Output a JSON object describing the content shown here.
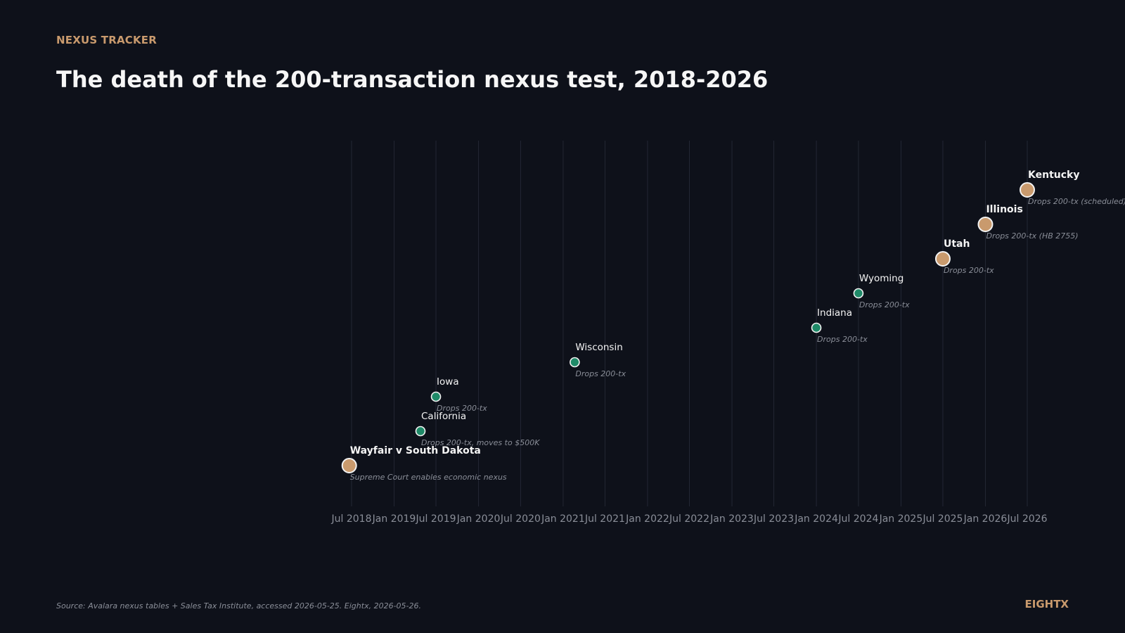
{
  "header": {
    "kicker": "NEXUS TRACKER",
    "title": "The death of the 200-transaction nexus test, 2018-2026"
  },
  "footer": {
    "source": "Source: Avalara nexus tables + Sales Tax Institute, accessed 2026-05-25. Eightx, 2026-05-26.",
    "brand": "EIGHTX"
  },
  "colors": {
    "background": "#0e111a",
    "major": "#c99a6d",
    "minor": "#1f8a68",
    "grid": "#232734",
    "tick_text": "#8a8e98",
    "label": "#f4f4f4",
    "sublabel": "#8a8e98"
  },
  "chart_data": {
    "type": "scatter",
    "title": "The death of the 200-transaction nexus test, 2018-2026",
    "xlabel": "",
    "ylabel": "",
    "x_axis": "date",
    "xlim": [
      "2018-06-15",
      "2026-08-31"
    ],
    "grid": true,
    "x_ticks": [
      "Jul 2018",
      "Jan 2019",
      "Jul 2019",
      "Jan 2020",
      "Jul 2020",
      "Jan 2021",
      "Jul 2021",
      "Jan 2022",
      "Jul 2022",
      "Jan 2023",
      "Jul 2023",
      "Jan 2024",
      "Jul 2024",
      "Jan 2025",
      "Jul 2025",
      "Jan 2026",
      "Jul 2026"
    ],
    "x_tick_dates": [
      "2018-07-01",
      "2019-01-01",
      "2019-07-01",
      "2020-01-01",
      "2020-07-01",
      "2021-01-01",
      "2021-07-01",
      "2022-01-01",
      "2022-07-01",
      "2023-01-01",
      "2023-07-01",
      "2024-01-01",
      "2024-07-01",
      "2025-01-01",
      "2025-07-01",
      "2026-01-01",
      "2026-07-01"
    ],
    "events": [
      {
        "label": "Wayfair v South Dakota",
        "detail": "Supreme Court enables economic nexus",
        "date": "2018-06-21",
        "major": true
      },
      {
        "label": "California",
        "detail": "Drops 200-tx, moves to $500K",
        "date": "2019-04-25",
        "major": false
      },
      {
        "label": "Iowa",
        "detail": "Drops 200-tx",
        "date": "2019-07-01",
        "major": false
      },
      {
        "label": "Wisconsin",
        "detail": "Drops 200-tx",
        "date": "2021-02-20",
        "major": false
      },
      {
        "label": "Indiana",
        "detail": "Drops 200-tx",
        "date": "2024-01-01",
        "major": false
      },
      {
        "label": "Wyoming",
        "detail": "Drops 200-tx",
        "date": "2024-07-01",
        "major": false
      },
      {
        "label": "Utah",
        "detail": "Drops 200-tx",
        "date": "2025-07-01",
        "major": true
      },
      {
        "label": "Illinois",
        "detail": "Drops 200-tx (HB 2755)",
        "date": "2026-01-01",
        "major": true
      },
      {
        "label": "Kentucky",
        "detail": "Drops 200-tx (scheduled)",
        "date": "2026-07-01",
        "major": true
      }
    ]
  }
}
